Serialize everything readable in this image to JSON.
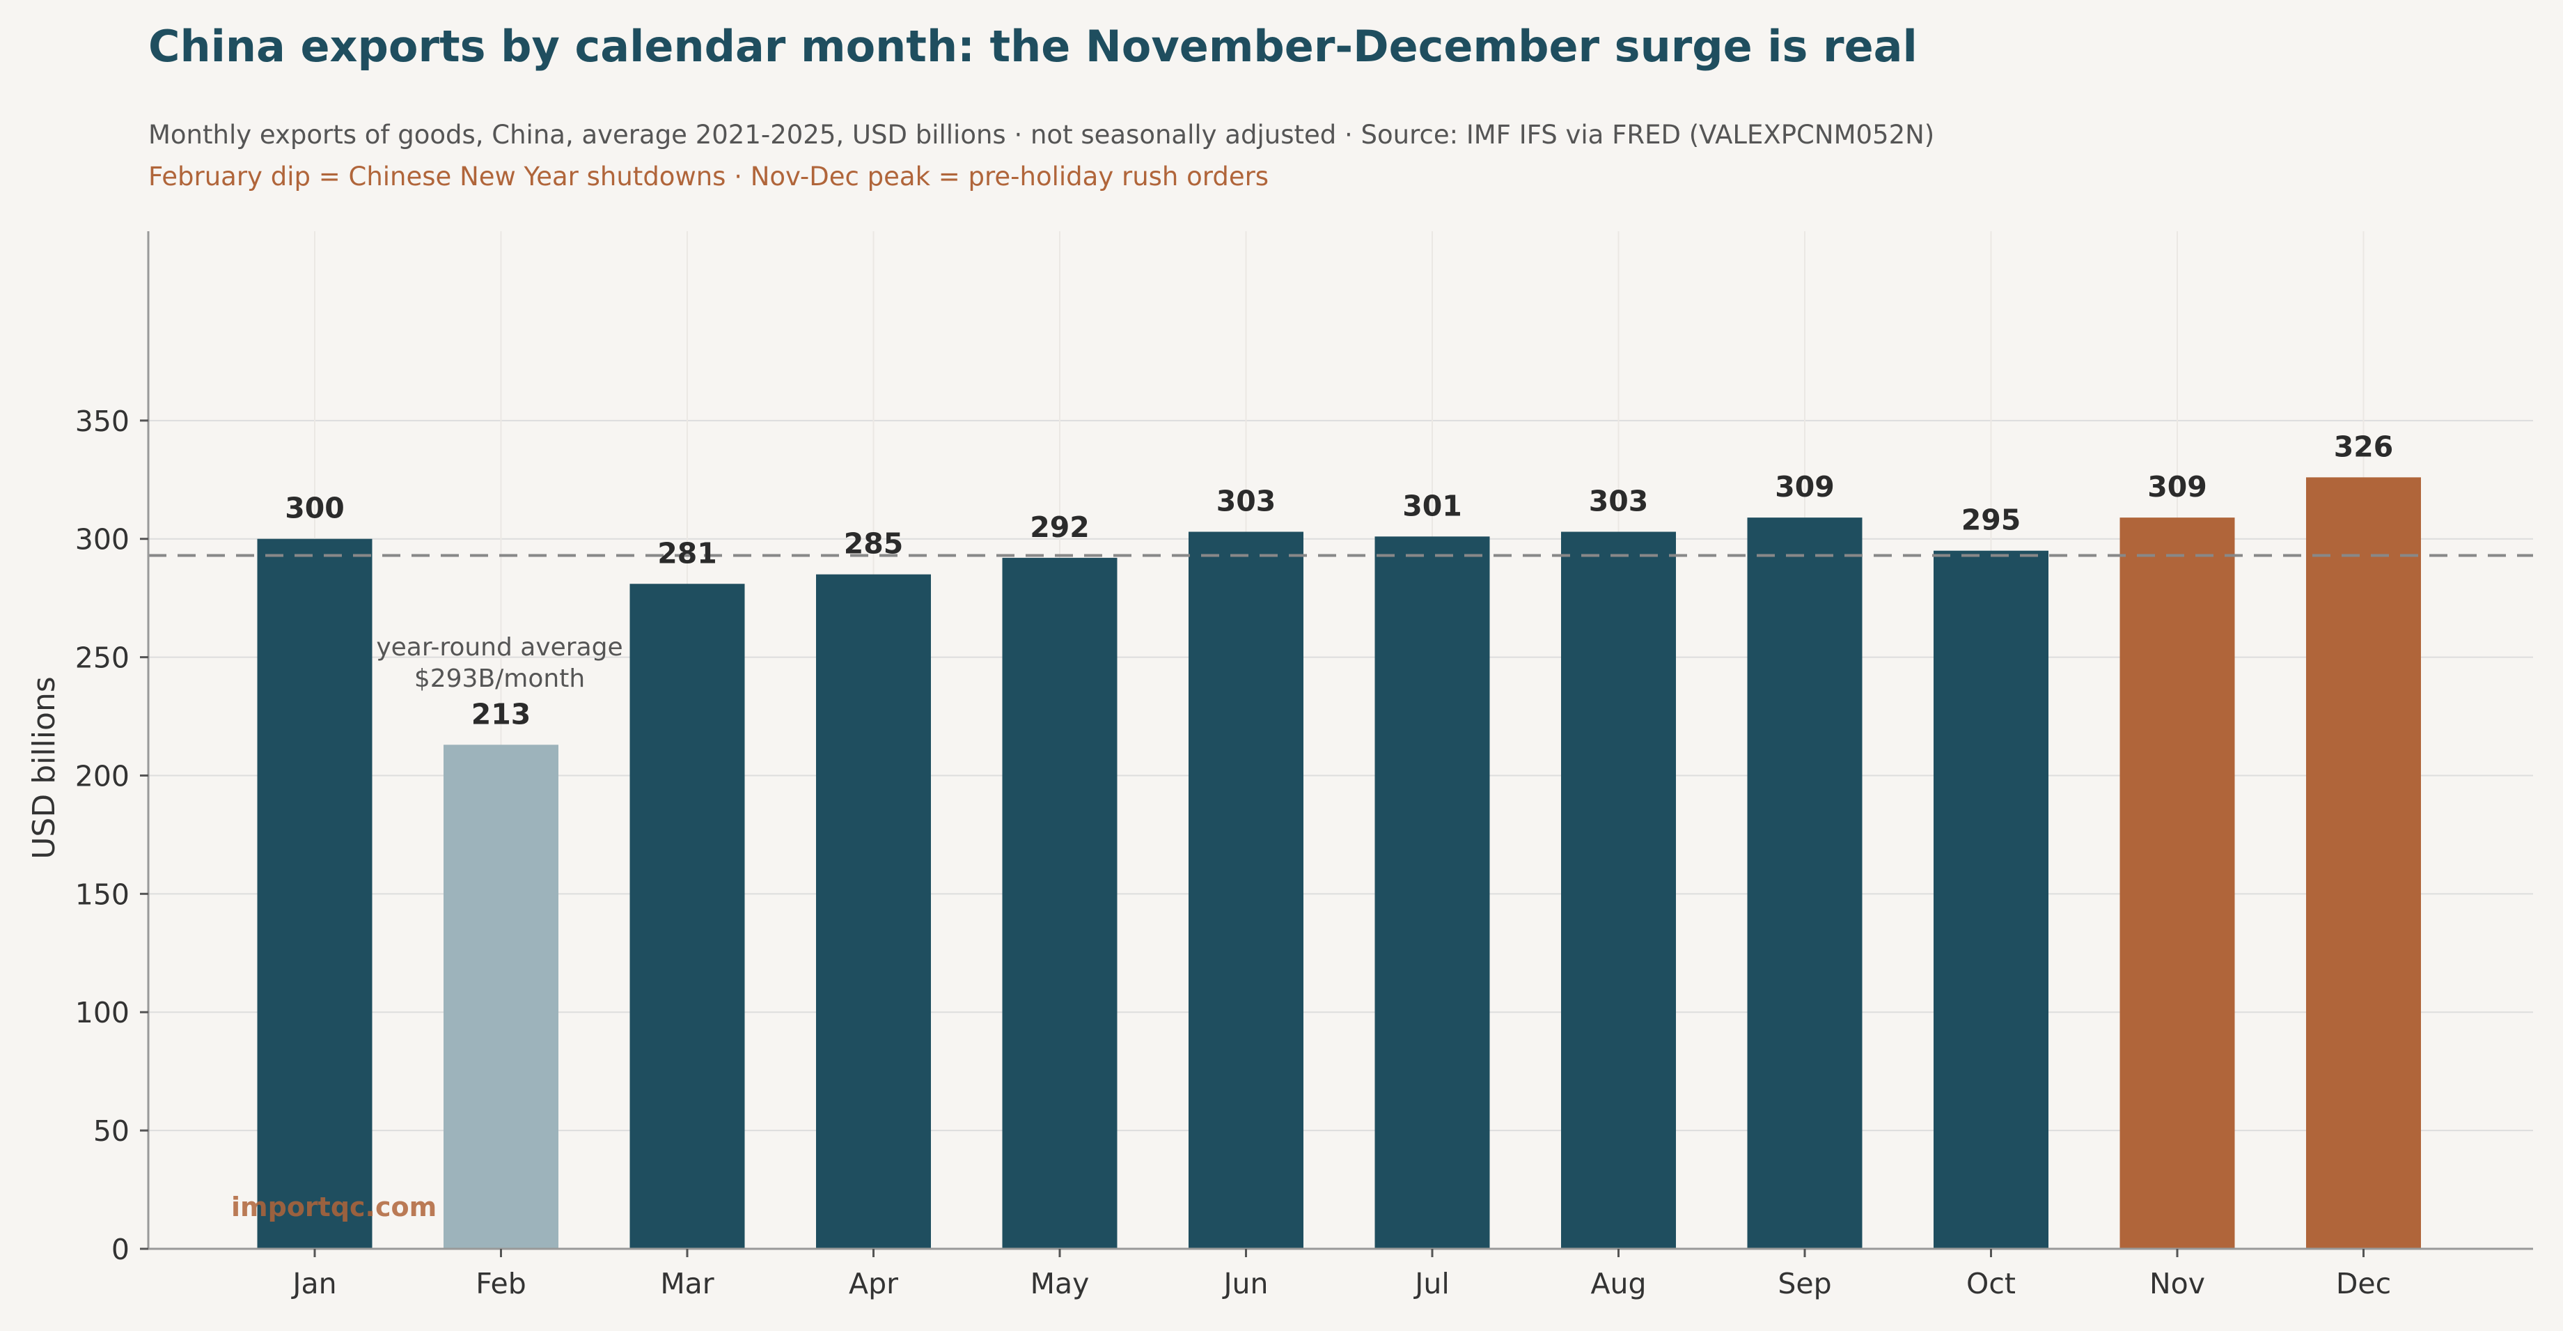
{
  "header": {
    "title": "China exports by calendar month: the November-December surge is real",
    "subtitle": "Monthly exports of goods, China, average 2021-2025, USD billions · not seasonally adjusted · Source: IMF IFS via FRED (VALEXPCNM052N)",
    "note": "February dip = Chinese New Year shutdowns  ·  Nov-Dec peak = pre-holiday rush orders"
  },
  "watermark": "importqc.com",
  "colors": {
    "normal": "#1f4e5f",
    "dip": "#9db3bb",
    "peak": "#b0653a",
    "average_line": "#888888"
  },
  "chart_data": {
    "type": "bar",
    "title": "China exports by calendar month: the November-December surge is real",
    "xlabel": "",
    "ylabel": "USD billions",
    "ylim": [
      0,
      430
    ],
    "yticks": [
      0,
      50,
      100,
      150,
      200,
      250,
      300,
      350
    ],
    "grid": true,
    "categories": [
      "Jan",
      "Feb",
      "Mar",
      "Apr",
      "May",
      "Jun",
      "Jul",
      "Aug",
      "Sep",
      "Oct",
      "Nov",
      "Dec"
    ],
    "values": [
      300,
      213,
      281,
      285,
      292,
      303,
      301,
      303,
      309,
      295,
      309,
      326
    ],
    "highlight": [
      "normal",
      "dip",
      "normal",
      "normal",
      "normal",
      "normal",
      "normal",
      "normal",
      "normal",
      "normal",
      "peak",
      "peak"
    ],
    "average": {
      "value": 293,
      "label_line1": "year-round average",
      "label_line2": "$293B/month"
    }
  }
}
